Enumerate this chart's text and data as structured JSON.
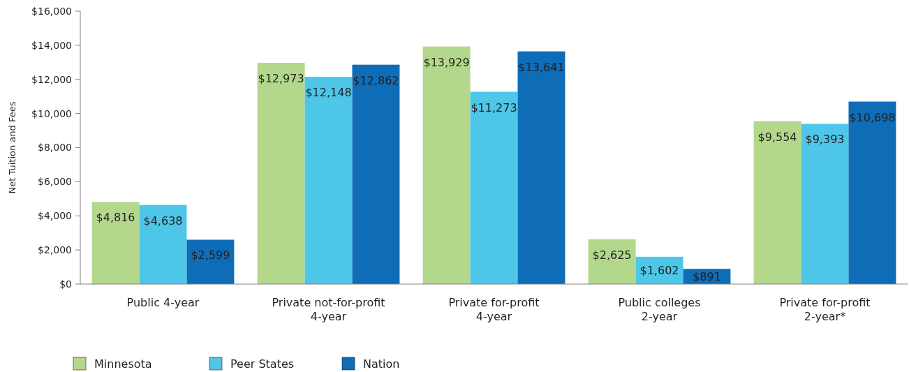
{
  "chart_data": {
    "type": "bar",
    "ylabel": "Net Tuition and Fees",
    "categories": [
      "Public 4-year",
      "Private not-for-profit\n4-year",
      "Private for-profit\n4-year",
      "Public colleges\n2-year",
      "Private for-profit\n2-year*"
    ],
    "series": [
      {
        "name": "Minnesota",
        "color": "#b3d88c",
        "values": [
          4816,
          12973,
          13929,
          2625,
          9554
        ],
        "value_labels": [
          "$4,816",
          "$12,973",
          "$13,929",
          "$2,625",
          "$9,554"
        ]
      },
      {
        "name": "Peer States",
        "color": "#4dc6e8",
        "values": [
          4638,
          12148,
          11273,
          1602,
          9393
        ],
        "value_labels": [
          "$4,638",
          "$12,148",
          "$11,273",
          "$1,602",
          "$9,393"
        ]
      },
      {
        "name": "Nation",
        "color": "#0f6db8",
        "values": [
          2599,
          12862,
          13641,
          891,
          10698
        ],
        "value_labels": [
          "$2,599",
          "$12,862",
          "$13,641",
          "$891",
          "$10,698"
        ]
      }
    ],
    "ylim": [
      0,
      16000
    ],
    "yticks": [
      {
        "value": 0,
        "label": "$0"
      },
      {
        "value": 2000,
        "label": "$2,000"
      },
      {
        "value": 4000,
        "label": "$4,000"
      },
      {
        "value": 6000,
        "label": "$6,000"
      },
      {
        "value": 8000,
        "label": "$8,000"
      },
      {
        "value": 10000,
        "label": "$10,000"
      },
      {
        "value": 12000,
        "label": "$12,000"
      },
      {
        "value": 14000,
        "label": "$14,000"
      },
      {
        "value": 16000,
        "label": "$16,000"
      }
    ],
    "grid": false,
    "legend": "bottom left"
  }
}
